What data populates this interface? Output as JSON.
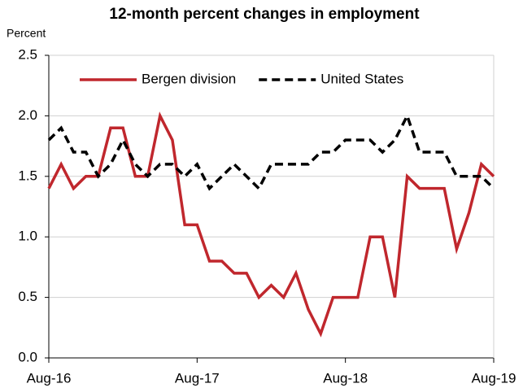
{
  "chart_data": {
    "type": "line",
    "title": "12-month percent changes in employment",
    "ylabel": "Percent",
    "categories": [
      "Aug-16",
      null,
      null,
      null,
      null,
      null,
      null,
      null,
      null,
      null,
      null,
      null,
      "Aug-17",
      null,
      null,
      null,
      null,
      null,
      null,
      null,
      null,
      null,
      null,
      null,
      "Aug-18",
      null,
      null,
      null,
      null,
      null,
      null,
      null,
      null,
      null,
      null,
      null,
      "Aug-19"
    ],
    "series": [
      {
        "name": "Bergen division",
        "color": "#c0272d",
        "dash": false,
        "values": [
          1.4,
          1.6,
          1.4,
          1.5,
          1.5,
          1.9,
          1.9,
          1.5,
          1.5,
          2.0,
          1.8,
          1.1,
          1.1,
          0.8,
          0.8,
          0.7,
          0.7,
          0.5,
          0.6,
          0.5,
          0.7,
          0.4,
          0.2,
          0.5,
          0.5,
          0.5,
          1.0,
          1.0,
          0.5,
          1.5,
          1.4,
          1.4,
          1.4,
          0.9,
          1.2,
          1.6,
          1.5
        ]
      },
      {
        "name": "United States",
        "color": "#000000",
        "dash": true,
        "values": [
          1.8,
          1.9,
          1.7,
          1.7,
          1.5,
          1.6,
          1.8,
          1.6,
          1.5,
          1.6,
          1.6,
          1.5,
          1.6,
          1.4,
          1.5,
          1.6,
          1.5,
          1.4,
          1.6,
          1.6,
          1.6,
          1.6,
          1.7,
          1.7,
          1.8,
          1.8,
          1.8,
          1.7,
          1.8,
          2.0,
          1.7,
          1.7,
          1.7,
          1.5,
          1.5,
          1.5,
          1.4
        ]
      }
    ],
    "ylim": [
      0,
      2.5
    ],
    "yticks": [
      {
        "value": 0,
        "label": "0.0"
      },
      {
        "value": 0.5,
        "label": "0.5"
      },
      {
        "value": 1,
        "label": "1.0"
      },
      {
        "value": 1.5,
        "label": "1.5"
      },
      {
        "value": 2,
        "label": "2.0"
      },
      {
        "value": 2.5,
        "label": "2.5"
      }
    ],
    "grid": true,
    "legend": "top"
  }
}
